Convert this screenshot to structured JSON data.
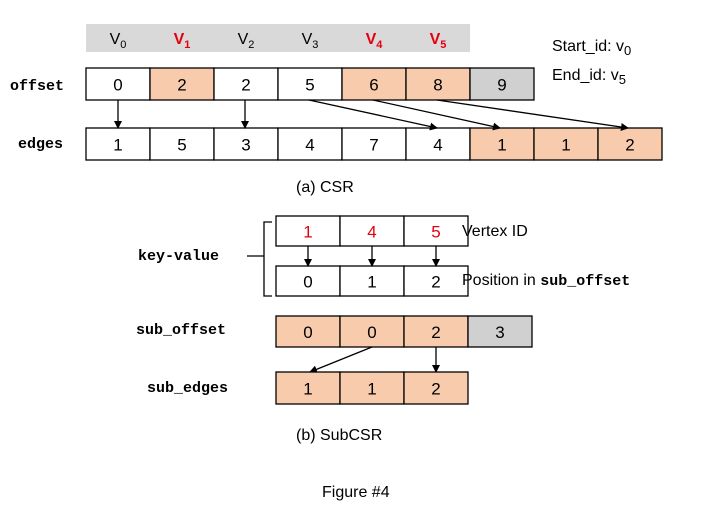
{
  "csr": {
    "header": [
      {
        "v": "V",
        "sub": "0",
        "color": "#000000",
        "bold": false
      },
      {
        "v": "V",
        "sub": "1",
        "color": "#e3000f",
        "bold": true
      },
      {
        "v": "V",
        "sub": "2",
        "color": "#000000",
        "bold": false
      },
      {
        "v": "V",
        "sub": "3",
        "color": "#000000",
        "bold": false
      },
      {
        "v": "V",
        "sub": "4",
        "color": "#e3000f",
        "bold": true
      },
      {
        "v": "V",
        "sub": "5",
        "color": "#e3000f",
        "bold": true
      }
    ],
    "offset_label": "offset",
    "offset": [
      {
        "val": "0",
        "fill": "#ffffff"
      },
      {
        "val": "2",
        "fill": "#f8cbad"
      },
      {
        "val": "2",
        "fill": "#ffffff"
      },
      {
        "val": "5",
        "fill": "#ffffff"
      },
      {
        "val": "6",
        "fill": "#f8cbad"
      },
      {
        "val": "8",
        "fill": "#f8cbad"
      },
      {
        "val": "9",
        "fill": "#d0d0d0"
      }
    ],
    "edges_label": "edges",
    "edges": [
      {
        "val": "1",
        "fill": "#ffffff"
      },
      {
        "val": "5",
        "fill": "#ffffff"
      },
      {
        "val": "3",
        "fill": "#ffffff"
      },
      {
        "val": "4",
        "fill": "#ffffff"
      },
      {
        "val": "7",
        "fill": "#ffffff"
      },
      {
        "val": "4",
        "fill": "#ffffff"
      },
      {
        "val": "1",
        "fill": "#f8cbad"
      },
      {
        "val": "1",
        "fill": "#f8cbad"
      },
      {
        "val": "2",
        "fill": "#f8cbad"
      }
    ],
    "start_id": {
      "label": "Start_id: v",
      "sub": "0"
    },
    "end_id": {
      "label": "End_id: v",
      "sub": "5"
    },
    "caption": "(a) CSR"
  },
  "subcsr": {
    "kv_label": "key-value",
    "vertex_ids": [
      "1",
      "4",
      "5"
    ],
    "vertex_id_label": "Vertex ID",
    "positions": [
      "0",
      "1",
      "2"
    ],
    "position_label": "Position in ",
    "position_label_code": "sub_offset",
    "sub_offset_label": "sub_offset",
    "sub_offset": [
      {
        "val": "0",
        "fill": "#f8cbad"
      },
      {
        "val": "0",
        "fill": "#f8cbad"
      },
      {
        "val": "2",
        "fill": "#f8cbad"
      },
      {
        "val": "3",
        "fill": "#d0d0d0"
      }
    ],
    "sub_edges_label": "sub_edges",
    "sub_edges": [
      {
        "val": "1",
        "fill": "#f8cbad"
      },
      {
        "val": "1",
        "fill": "#f8cbad"
      },
      {
        "val": "2",
        "fill": "#f8cbad"
      }
    ],
    "caption": "(b) SubCSR"
  },
  "figure_title": "Figure #4",
  "colors": {
    "highlight": "#f8cbad",
    "gray": "#d0d0d0",
    "red": "#e3000f",
    "header_bg": "#d9d9d9"
  }
}
